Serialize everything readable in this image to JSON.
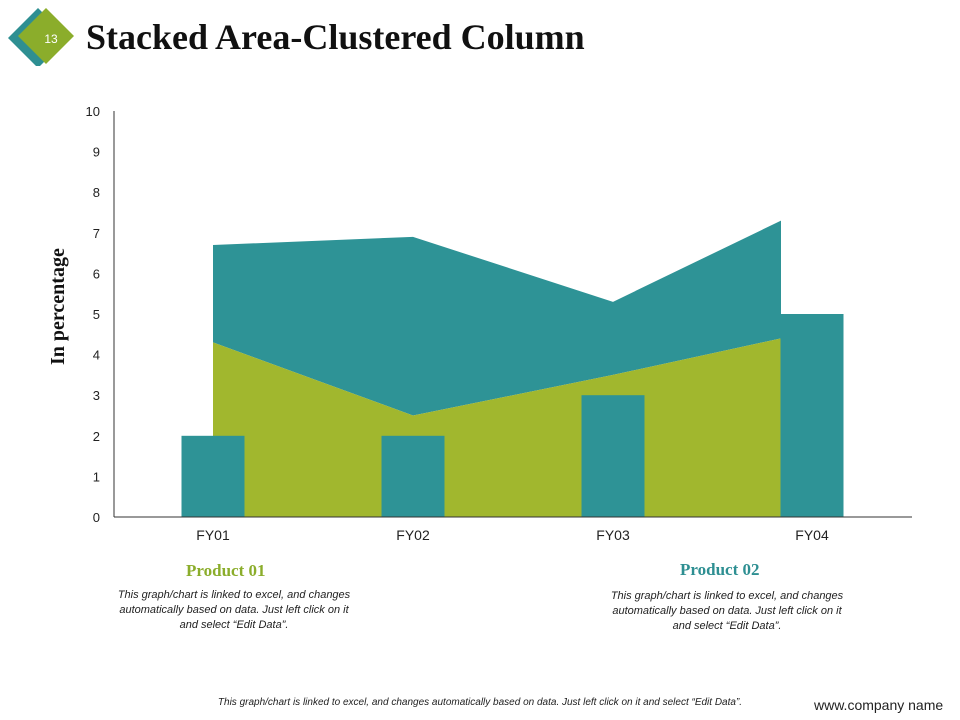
{
  "slide": {
    "number": "13",
    "title": "Stacked Area-Clustered Column",
    "footer": "This graph/chart is linked to excel, and changes automatically based on data. Just left click on it and select “Edit Data”.",
    "website": "www.company name"
  },
  "colors": {
    "teal": "#2e9396",
    "green": "#a1b72e",
    "badge_teal": "#2e8f92",
    "badge_green": "#8bad2b"
  },
  "legend": [
    {
      "title": "Product 01",
      "desc": "This graph/chart is linked to excel, and changes automatically based on data. Just left click on it and select “Edit Data”.",
      "color": "#8bad2b"
    },
    {
      "title": "Product 02",
      "desc": "This graph/chart is linked to excel, and changes automatically based on data. Just left click on it and select “Edit Data”.",
      "color": "#2e8f92"
    }
  ],
  "chart_data": {
    "type": "area",
    "categories": [
      "FY01",
      "FY02",
      "FY03",
      "FY04"
    ],
    "ylabel": "In percentage",
    "ylim": [
      0,
      10
    ],
    "yticks": [
      0,
      1,
      2,
      3,
      4,
      5,
      6,
      7,
      8,
      9,
      10
    ],
    "area_series": [
      {
        "values": [
          4.3,
          2.5,
          3.5,
          4.4
        ]
      },
      {
        "values": [
          2.4,
          4.4,
          1.8,
          2.9
        ]
      }
    ],
    "column_series": [
      {
        "values": [
          2,
          2,
          3,
          5
        ]
      }
    ],
    "grid": false
  }
}
